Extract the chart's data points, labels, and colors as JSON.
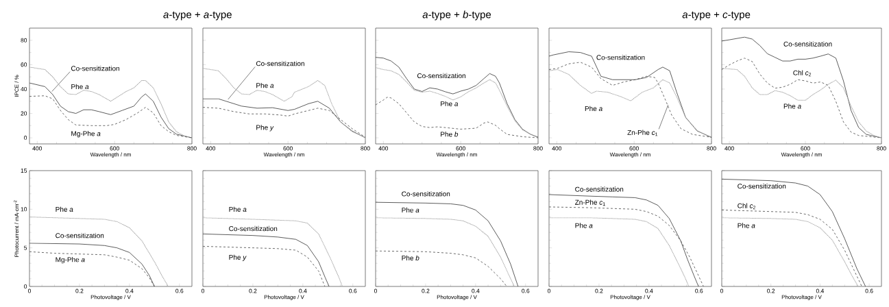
{
  "chart_data": [
    {
      "type": "line",
      "title": "*a*-type + *a*-type",
      "xlabel": "Wavelength / nm",
      "ylabel": "IPCE / %",
      "xlim": [
        380,
        800
      ],
      "ylim": [
        -5,
        90
      ],
      "xticks": [
        400,
        600,
        800
      ],
      "yticks": [
        0,
        20,
        40,
        60,
        80
      ],
      "series": [
        {
          "name": "Co-sensitization",
          "color": "#333333",
          "line_style": "solid",
          "x": [
            380,
            420,
            440,
            460,
            480,
            500,
            520,
            540,
            560,
            590,
            620,
            650,
            670,
            680,
            700,
            720,
            740,
            760,
            800
          ],
          "values": [
            45,
            42,
            35.5,
            26,
            21.5,
            20,
            23,
            23,
            21.5,
            19,
            22.5,
            26,
            33.5,
            36,
            30,
            17,
            7.5,
            3,
            0
          ]
        },
        {
          "name": "Phe *a*",
          "color": "#a6a6a6",
          "line_style": "dotted",
          "x": [
            380,
            420,
            440,
            460,
            480,
            500,
            520,
            540,
            560,
            590,
            610,
            630,
            650,
            670,
            680,
            700,
            720,
            740,
            760,
            780,
            800
          ],
          "values": [
            58,
            56,
            50,
            42,
            36,
            35.5,
            39,
            38,
            35.5,
            30,
            34,
            38,
            41,
            47,
            47,
            41,
            28,
            13,
            5,
            1.5,
            0
          ]
        },
        {
          "name": "Mg-Phe *a*",
          "color": "#444444",
          "line_style": "dashed",
          "x": [
            380,
            420,
            440,
            460,
            480,
            500,
            540,
            580,
            600,
            630,
            660,
            680,
            700,
            720,
            740,
            760,
            800
          ],
          "values": [
            34,
            34.5,
            32,
            22.5,
            15,
            10.5,
            10,
            10,
            11,
            15,
            20.5,
            25,
            20.5,
            10,
            5,
            2,
            0
          ]
        }
      ]
    },
    {
      "type": "line",
      "xlabel": "Wavelength / nm",
      "xlim": [
        380,
        800
      ],
      "ylim": [
        -5,
        90
      ],
      "xticks": [
        400,
        600,
        800
      ],
      "yticks": [
        0,
        20,
        40,
        60,
        80
      ],
      "tick_labels": "x",
      "series": [
        {
          "name": "Co-sensitization",
          "color": "#333333",
          "line_style": "solid",
          "x": [
            380,
            420,
            440,
            480,
            520,
            560,
            600,
            617,
            653,
            677,
            707,
            736,
            766,
            800
          ],
          "values": [
            32,
            32,
            30,
            26,
            24.3,
            24.7,
            22.4,
            23.4,
            28,
            30,
            24.3,
            13,
            5.6,
            0
          ]
        },
        {
          "name": "Phe *a*",
          "color": "#aaaaaa",
          "line_style": "dotted",
          "x": [
            380,
            420,
            440,
            460,
            480,
            500,
            520,
            540,
            560,
            590,
            610,
            617,
            653,
            677,
            695,
            713,
            736,
            766,
            795,
            800
          ],
          "values": [
            57,
            55,
            48.6,
            41,
            36,
            35.5,
            39,
            38,
            35.5,
            30,
            33.6,
            37.4,
            42,
            47,
            43,
            28,
            13,
            5,
            1,
            0
          ]
        },
        {
          "name": "Phe *y*",
          "color": "#444444",
          "line_style": "dashed",
          "x": [
            380,
            420,
            460,
            500,
            540,
            580,
            600,
            617,
            653,
            677,
            707,
            736,
            766,
            800
          ],
          "values": [
            25,
            24.3,
            21.5,
            19.6,
            19.6,
            18.7,
            17.8,
            19.6,
            22.4,
            24.3,
            22.4,
            15,
            7.5,
            0.5
          ]
        }
      ]
    },
    {
      "type": "line",
      "title": "*a*-type + *b*-type",
      "xlabel": "Wavelength / nm",
      "xlim": [
        380,
        800
      ],
      "ylim": [
        -5,
        90
      ],
      "xticks": [
        400,
        600,
        800
      ],
      "yticks": [
        0,
        20,
        40,
        60,
        80
      ],
      "tick_labels": "x",
      "series": [
        {
          "name": "Co-sensitization",
          "color": "#333333",
          "line_style": "solid",
          "x": [
            380,
            400,
            420,
            440,
            460,
            480,
            500,
            520,
            540,
            560,
            580,
            600,
            620,
            640,
            660,
            675,
            690,
            700,
            720,
            740,
            760,
            780,
            800
          ],
          "values": [
            66,
            65.4,
            63,
            58,
            48.6,
            40,
            38,
            41,
            40,
            37.8,
            36,
            38.3,
            40,
            43,
            48.6,
            52.7,
            50.5,
            45,
            28,
            15,
            7,
            3,
            0.5
          ]
        },
        {
          "name": "Phe *a*",
          "color": "#aaaaaa",
          "line_style": "dotted",
          "x": [
            380,
            400,
            420,
            440,
            460,
            480,
            500,
            520,
            540,
            560,
            580,
            600,
            620,
            640,
            660,
            675,
            690,
            700,
            720,
            740,
            760,
            780,
            800
          ],
          "values": [
            57.6,
            56,
            55,
            52,
            45.8,
            39,
            37.4,
            38.3,
            36.4,
            34,
            31,
            33.6,
            37.8,
            41,
            45,
            47.7,
            45,
            39,
            26,
            14,
            6.5,
            3,
            0
          ]
        },
        {
          "name": "Phe *b*",
          "color": "#444444",
          "line_style": "dashed",
          "x": [
            380,
            400,
            410,
            420,
            440,
            460,
            480,
            500,
            520,
            540,
            560,
            600,
            640,
            660,
            670,
            690,
            700,
            720,
            760,
            800
          ],
          "values": [
            27,
            31,
            33.3,
            32.7,
            28,
            20.5,
            13,
            9.3,
            8.4,
            9,
            8.4,
            7.1,
            7.9,
            12.1,
            13,
            10.3,
            7.5,
            2.8,
            0.9,
            0
          ]
        }
      ]
    },
    {
      "type": "line",
      "title": "*a*-type + *c*-type",
      "xlabel": "Wavelength / nm",
      "xlim": [
        380,
        800
      ],
      "ylim": [
        -5,
        90
      ],
      "xticks": [
        400,
        600,
        800
      ],
      "yticks": [
        0,
        20,
        40,
        60,
        80
      ],
      "tick_labels": "x",
      "series": [
        {
          "name": "Co-sensitization",
          "color": "#333333",
          "line_style": "solid",
          "x": [
            380,
            391,
            431,
            461,
            490,
            514,
            544,
            573,
            603,
            632,
            662,
            674,
            692,
            710,
            733,
            763,
            800
          ],
          "values": [
            67,
            68,
            70.6,
            70,
            67,
            50.5,
            47.7,
            47.7,
            47.7,
            49.5,
            56,
            58,
            55,
            37.4,
            16.8,
            5.6,
            0.4
          ]
        },
        {
          "name": "Phe *a*",
          "color": "#aaaaaa",
          "line_style": "dotted",
          "x": [
            380,
            402,
            431,
            461,
            490,
            502,
            532,
            567,
            591,
            621,
            650,
            674,
            692,
            710,
            733,
            763,
            800
          ],
          "values": [
            55,
            56,
            52,
            43,
            36.4,
            38.3,
            37.4,
            33.6,
            30.3,
            37.4,
            41,
            47.7,
            45,
            33.6,
            16.8,
            6,
            0
          ]
        },
        {
          "name": "Zn-Phe *c*$_{1}$",
          "color": "#444444",
          "line_style": "dashed",
          "x": [
            380,
            402,
            431,
            461,
            490,
            514,
            544,
            573,
            603,
            632,
            653,
            662,
            680,
            697,
            721,
            751,
            800
          ],
          "values": [
            56,
            57,
            60.7,
            62,
            58,
            48.6,
            43,
            45.8,
            47.7,
            50.5,
            49.5,
            45,
            31.8,
            18.7,
            7.5,
            2.8,
            0.4
          ]
        }
      ]
    },
    {
      "type": "line",
      "xlabel": "Wavelength / nm",
      "xlim": [
        380,
        800
      ],
      "ylim": [
        -5,
        90
      ],
      "xticks": [
        400,
        600,
        800
      ],
      "yticks": [
        0,
        20,
        40,
        60,
        80
      ],
      "tick_labels": "x",
      "series": [
        {
          "name": "Co-sensitization",
          "color": "#333333",
          "line_style": "solid",
          "x": [
            380,
            400,
            440,
            460,
            480,
            500,
            520,
            540,
            560,
            580,
            600,
            620,
            640,
            660,
            680,
            700,
            720,
            740,
            760,
            800
          ],
          "values": [
            79.4,
            80.4,
            82.6,
            81,
            75.7,
            69,
            66,
            63,
            63,
            64.5,
            64.5,
            65.4,
            67,
            68.8,
            65.4,
            46.7,
            22.4,
            8.4,
            2.8,
            0
          ]
        },
        {
          "name": "Chl *c*$_{2}$",
          "color": "#444444",
          "line_style": "dashed",
          "x": [
            380,
            400,
            420,
            440,
            460,
            480,
            500,
            520,
            540,
            560,
            580,
            600,
            620,
            640,
            660,
            680,
            700,
            720,
            740,
            800
          ],
          "values": [
            56,
            59.8,
            63,
            65.4,
            62.6,
            52.3,
            44.9,
            40.7,
            41.5,
            43.9,
            47.7,
            46.7,
            44.9,
            45.8,
            43,
            29.9,
            13,
            4.7,
            1.9,
            0
          ]
        },
        {
          "name": "Phe *a*",
          "color": "#aaaaaa",
          "line_style": "dotted",
          "x": [
            380,
            420,
            440,
            460,
            480,
            500,
            520,
            540,
            560,
            580,
            600,
            620,
            640,
            660,
            680,
            700,
            720,
            740,
            760,
            780,
            800
          ],
          "values": [
            57,
            56,
            50.5,
            41,
            35.5,
            35.5,
            38.7,
            37.4,
            34.6,
            30.8,
            30.8,
            35.5,
            39.3,
            43.9,
            47.3,
            41,
            26,
            13,
            5.6,
            1.9,
            0
          ]
        }
      ]
    },
    {
      "type": "line",
      "xlabel": "Photovoltage / V",
      "ylabel": "Photocurrent / mA·cm$^{-2}$",
      "xlim": [
        0,
        0.65
      ],
      "ylim": [
        0,
        15
      ],
      "xticks": [
        0,
        0.2,
        0.4,
        0.6
      ],
      "yticks": [
        0,
        5,
        10,
        15
      ],
      "series": [
        {
          "name": "Phe *a*",
          "color": "#aaaaaa",
          "line_style": "dotted",
          "x": [
            0,
            0.2,
            0.3,
            0.35,
            0.4,
            0.45,
            0.5,
            0.53,
            0.555
          ],
          "values": [
            9.0,
            8.8,
            8.7,
            8.4,
            7.6,
            5.9,
            3.2,
            1.4,
            0
          ]
        },
        {
          "name": "Co-sensitization",
          "color": "#333333",
          "line_style": "solid",
          "x": [
            0,
            0.2,
            0.3,
            0.35,
            0.4,
            0.45,
            0.48,
            0.5
          ],
          "values": [
            5.6,
            5.5,
            5.3,
            5.0,
            4.4,
            2.9,
            1.4,
            0
          ]
        },
        {
          "name": "Mg-Phe *a*",
          "color": "#444444",
          "line_style": "dashed",
          "x": [
            0,
            0.1,
            0.2,
            0.3,
            0.35,
            0.4,
            0.45,
            0.48,
            0.5
          ],
          "values": [
            4.5,
            4.3,
            4.2,
            4.1,
            3.8,
            3.4,
            2.3,
            1.1,
            0
          ]
        }
      ]
    },
    {
      "type": "line",
      "xlabel": "Photovoltage / V",
      "xlim": [
        0,
        0.65
      ],
      "ylim": [
        0,
        15
      ],
      "xticks": [
        0,
        0.2,
        0.4,
        0.6
      ],
      "yticks": [
        0,
        5,
        10,
        15
      ],
      "tick_labels": "x",
      "series": [
        {
          "name": "Phe *a*",
          "color": "#aaaaaa",
          "line_style": "dotted",
          "x": [
            0,
            0.2,
            0.372,
            0.418,
            0.463,
            0.508,
            0.545,
            0.558
          ],
          "values": [
            8.9,
            8.7,
            8.5,
            8.2,
            6.8,
            3.8,
            1.1,
            0
          ]
        },
        {
          "name": "Co-sensitization",
          "color": "#333333",
          "line_style": "solid",
          "x": [
            0,
            0.2,
            0.3,
            0.372,
            0.418,
            0.463,
            0.49,
            0.505
          ],
          "values": [
            6.8,
            6.6,
            6.4,
            6.1,
            5.3,
            3.2,
            1.1,
            0
          ]
        },
        {
          "name": "Phe *y*",
          "color": "#444444",
          "line_style": "dashed",
          "x": [
            0,
            0.2,
            0.3,
            0.372,
            0.418,
            0.463,
            0.488
          ],
          "values": [
            5.2,
            5.0,
            4.9,
            4.7,
            3.8,
            2.0,
            0
          ]
        }
      ]
    },
    {
      "type": "line",
      "xlabel": "Photovoltage / V",
      "xlim": [
        0,
        0.65
      ],
      "ylim": [
        0,
        15
      ],
      "xticks": [
        0,
        0.2,
        0.4,
        0.6
      ],
      "yticks": [
        0,
        5,
        10,
        15
      ],
      "tick_labels": "x",
      "series": [
        {
          "name": "Co-sensitization",
          "color": "#333333",
          "line_style": "solid",
          "x": [
            0,
            0.2,
            0.3,
            0.35,
            0.4,
            0.45,
            0.5,
            0.54,
            0.57
          ],
          "values": [
            10.9,
            10.8,
            10.7,
            10.5,
            9.9,
            8.5,
            5.9,
            2.9,
            0
          ]
        },
        {
          "name": "Phe *a*",
          "color": "#aaaaaa",
          "line_style": "dotted",
          "x": [
            0,
            0.2,
            0.3,
            0.35,
            0.4,
            0.45,
            0.5,
            0.53,
            0.555
          ],
          "values": [
            8.9,
            8.8,
            8.7,
            8.5,
            7.8,
            6.5,
            3.8,
            1.7,
            0
          ]
        },
        {
          "name": "Phe *b*",
          "color": "#444444",
          "line_style": "dashed",
          "x": [
            0,
            0.2,
            0.3,
            0.35,
            0.4,
            0.45,
            0.5,
            0.525
          ],
          "values": [
            4.6,
            4.5,
            4.3,
            4.1,
            3.7,
            2.6,
            1.0,
            0
          ]
        }
      ]
    },
    {
      "type": "line",
      "xlabel": "Photovoltage / V",
      "xlim": [
        0,
        0.65
      ],
      "ylim": [
        0,
        15
      ],
      "xticks": [
        0,
        0.2,
        0.4,
        0.6
      ],
      "yticks": [
        0,
        5,
        10,
        15
      ],
      "tick_labels": "x",
      "series": [
        {
          "name": "Co-sensitization",
          "color": "#333333",
          "line_style": "solid",
          "x": [
            0,
            0.162,
            0.253,
            0.344,
            0.39,
            0.436,
            0.481,
            0.527,
            0.554,
            0.58,
            0.598
          ],
          "values": [
            11.9,
            11.7,
            11.6,
            11.5,
            11.2,
            10.5,
            8.8,
            5.9,
            3.5,
            1.4,
            0
          ]
        },
        {
          "name": "Zn-Phe *c*$_{1}$",
          "color": "#444444",
          "line_style": "dashed",
          "x": [
            0,
            0.162,
            0.253,
            0.344,
            0.39,
            0.436,
            0.481,
            0.527,
            0.563,
            0.598,
            0.618
          ],
          "values": [
            10.3,
            10.2,
            10.1,
            10.0,
            9.7,
            9.1,
            7.9,
            5.9,
            3.8,
            1.4,
            0
          ]
        },
        {
          "name": "Phe *a*",
          "color": "#aaaaaa",
          "line_style": "dotted",
          "x": [
            0,
            0.162,
            0.253,
            0.344,
            0.39,
            0.436,
            0.481,
            0.518,
            0.545,
            0.559
          ],
          "values": [
            8.9,
            8.9,
            8.8,
            8.7,
            8.4,
            7.5,
            5.3,
            2.9,
            1.1,
            0
          ]
        }
      ]
    },
    {
      "type": "line",
      "xlabel": "Photovoltage / V",
      "xlim": [
        0,
        0.65
      ],
      "ylim": [
        0,
        15
      ],
      "xticks": [
        0,
        0.2,
        0.4,
        0.6
      ],
      "yticks": [
        0,
        5,
        10,
        15
      ],
      "tick_labels": "x",
      "series": [
        {
          "name": "Co-sensitization",
          "color": "#333333",
          "line_style": "solid",
          "x": [
            0,
            0.1,
            0.2,
            0.3,
            0.35,
            0.4,
            0.45,
            0.5,
            0.55,
            0.585
          ],
          "values": [
            13.9,
            13.8,
            13.7,
            13.4,
            13.0,
            11.9,
            9.7,
            6.2,
            2.3,
            0
          ]
        },
        {
          "name": "Chl *c*$_{2}$",
          "color": "#444444",
          "line_style": "dashed",
          "x": [
            0,
            0.2,
            0.3,
            0.35,
            0.4,
            0.45,
            0.5,
            0.54,
            0.57
          ],
          "values": [
            9.9,
            9.7,
            9.6,
            9.3,
            8.7,
            7.4,
            4.7,
            2.0,
            0
          ]
        },
        {
          "name": "Phe *a*",
          "color": "#aaaaaa",
          "line_style": "dotted",
          "x": [
            0,
            0.2,
            0.3,
            0.35,
            0.4,
            0.45,
            0.5,
            0.53,
            0.555
          ],
          "values": [
            8.9,
            8.8,
            8.7,
            8.4,
            7.6,
            6.0,
            3.2,
            1.4,
            0
          ]
        }
      ]
    }
  ]
}
